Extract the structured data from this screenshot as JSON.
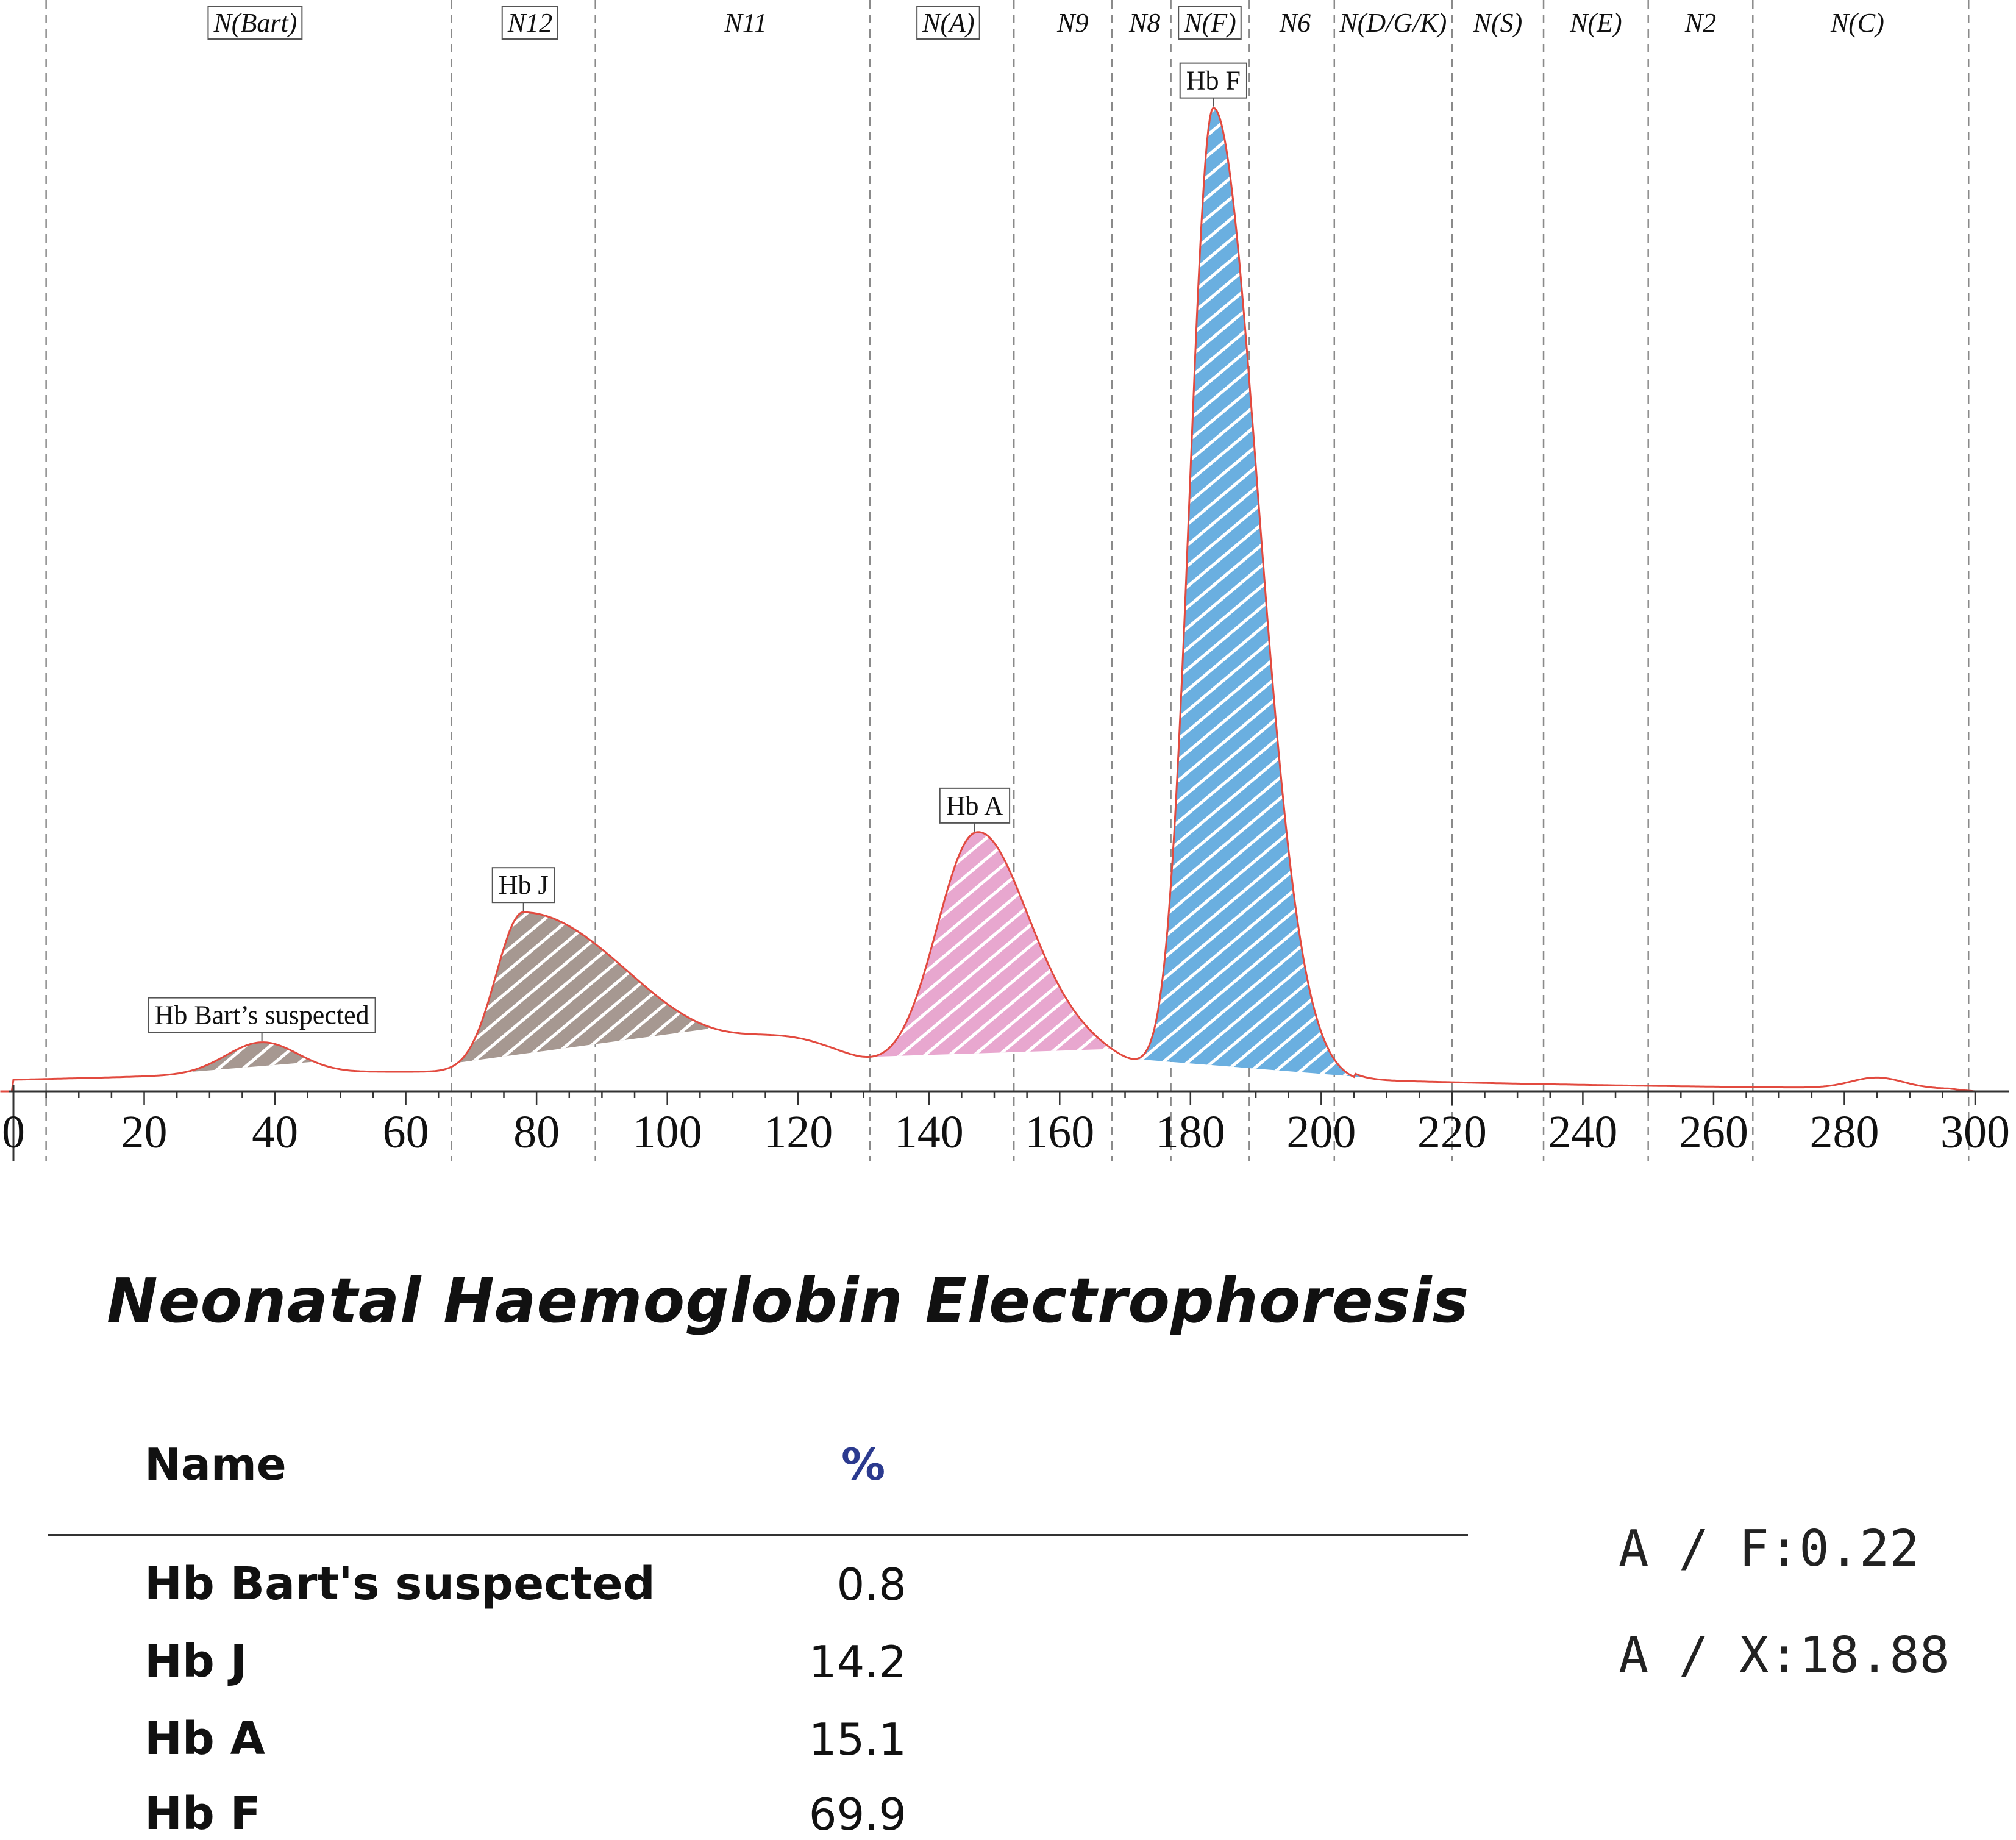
{
  "chart_data": {
    "type": "area",
    "x_ticks": [
      "0",
      "20",
      "40",
      "60",
      "80",
      "100",
      "120",
      "140",
      "160",
      "180",
      "200",
      "220",
      "240",
      "260",
      "280",
      "300"
    ],
    "xlim": [
      0,
      300
    ],
    "zone_boundaries": [
      5,
      67,
      89,
      131,
      153,
      168,
      177,
      189,
      202,
      220,
      234,
      250,
      266,
      299
    ],
    "zones": [
      {
        "label": "N(Bart)",
        "center": 37,
        "boxed": true
      },
      {
        "label": "N12",
        "center": 79,
        "boxed": true
      },
      {
        "label": "N11",
        "center": 112,
        "boxed": false
      },
      {
        "label": "N(A)",
        "center": 143,
        "boxed": true
      },
      {
        "label": "N9",
        "center": 162,
        "boxed": false
      },
      {
        "label": "N8",
        "center": 173,
        "boxed": false
      },
      {
        "label": "N(F)",
        "center": 183,
        "boxed": true
      },
      {
        "label": "N6",
        "center": 196,
        "boxed": false
      },
      {
        "label": "N(D/G/K)",
        "center": 211,
        "boxed": false
      },
      {
        "label": "N(S)",
        "center": 227,
        "boxed": false
      },
      {
        "label": "N(E)",
        "center": 242,
        "boxed": false
      },
      {
        "label": "N2",
        "center": 258,
        "boxed": false
      },
      {
        "label": "N(C)",
        "center": 282,
        "boxed": false
      }
    ],
    "peaks": [
      {
        "label": "Hb Bart’s suspected",
        "center": 38,
        "height": 0.032,
        "width": 5.5,
        "start": 26,
        "end": 46,
        "color": "#a69891"
      },
      {
        "label": "Hb J",
        "center": 78,
        "height": 0.165,
        "width": 4.2,
        "width_right": 17,
        "start": 68,
        "end": 107,
        "color": "#a69891"
      },
      {
        "label": "Hb A",
        "center": 147,
        "height": 0.24,
        "width": 6.0,
        "width_right": 7.5,
        "start": 131,
        "end": 168,
        "color": "#e8a7cf"
      },
      {
        "label": "Hb F",
        "center": 183.5,
        "height": 1.0,
        "width": 3.6,
        "width_right": 6.8,
        "start": 171,
        "end": 207,
        "color": "#6aafe0"
      }
    ],
    "minor_bumps": [
      {
        "center": 285,
        "height": 0.011,
        "width": 4
      }
    ],
    "ylim": [
      0,
      1.02
    ]
  },
  "report": {
    "title": "Neonatal Haemoglobin Electrophoresis",
    "col_name": "Name",
    "col_pct": "%",
    "rows": [
      {
        "name": "Hb Bart's suspected",
        "value": "0.8"
      },
      {
        "name": "Hb J",
        "value": "14.2"
      },
      {
        "name": "Hb A",
        "value": "15.1"
      },
      {
        "name": "Hb F",
        "value": "69.9"
      }
    ],
    "ratio_af": "A / F:0.22",
    "ratio_ax": "A / X:18.88"
  }
}
